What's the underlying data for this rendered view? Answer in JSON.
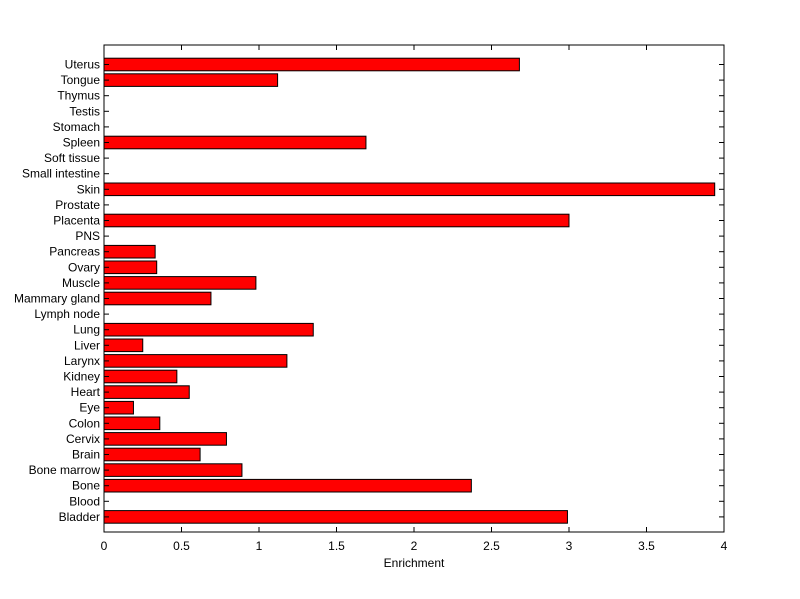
{
  "chart_data": {
    "type": "bar",
    "orientation": "horizontal",
    "title": "",
    "xlabel": "Enrichment",
    "ylabel": "",
    "xlim": [
      0,
      4
    ],
    "x_ticks": [
      "0",
      "0.5",
      "1",
      "1.5",
      "2",
      "2.5",
      "3",
      "3.5",
      "4"
    ],
    "grid": false,
    "bar_color": "#ff0000",
    "categories": [
      "Bladder",
      "Blood",
      "Bone",
      "Bone marrow",
      "Brain",
      "Cervix",
      "Colon",
      "Eye",
      "Heart",
      "Kidney",
      "Larynx",
      "Liver",
      "Lung",
      "Lymph node",
      "Mammary gland",
      "Muscle",
      "Ovary",
      "Pancreas",
      "PNS",
      "Placenta",
      "Prostate",
      "Skin",
      "Small intestine",
      "Soft tissue",
      "Spleen",
      "Stomach",
      "Testis",
      "Thymus",
      "Tongue",
      "Uterus"
    ],
    "values": [
      2.99,
      0,
      2.37,
      0.89,
      0.62,
      0.79,
      0.36,
      0.19,
      0.55,
      0.47,
      1.18,
      0.25,
      1.35,
      0,
      0.69,
      0.98,
      0.34,
      0.33,
      0,
      3.0,
      0,
      3.94,
      0,
      0,
      1.69,
      0,
      0,
      0,
      1.12,
      2.68
    ]
  }
}
